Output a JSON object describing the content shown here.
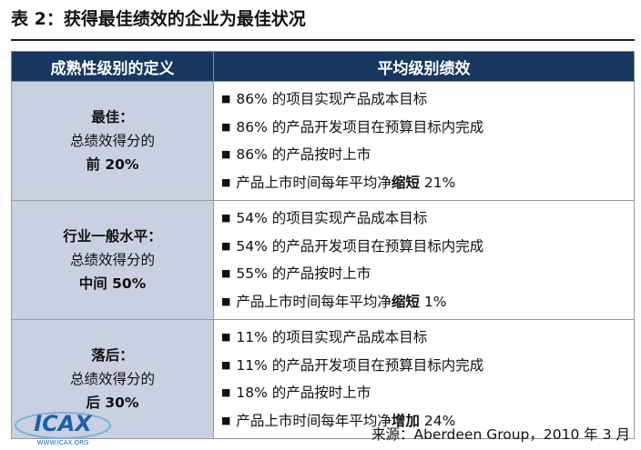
{
  "header": {
    "title": "表 2：获得最佳绩效的企业为最佳状况"
  },
  "table": {
    "columns": [
      "成熟性级别的定义",
      "平均级别绩效"
    ],
    "rows": [
      {
        "level": "最佳：",
        "desc": "总绩效得分的",
        "share": "前 20%",
        "items": [
          "86% 的项目实现产品成本目标",
          "86% 的产品开发项目在预算目标内完成",
          "86% 的产品按时上市",
          {
            "text": "产品上市时间每年平均净",
            "emphasis": "缩短",
            "rest": "21%"
          }
        ]
      },
      {
        "level": "行业一般水平：",
        "desc": "总绩效得分的",
        "share": "中间 50%",
        "items": [
          "54% 的项目实现产品成本目标",
          "54% 的产品开发项目在预算目标内完成",
          "55% 的产品按时上市",
          {
            "text": "产品上市时间每年平均净",
            "emphasis": "缩短",
            "rest": "1%"
          }
        ]
      },
      {
        "level": "落后：",
        "desc": "总绩效得分的",
        "share": "后 30%",
        "items": [
          "11% 的项目实现产品成本目标",
          "11% 的产品开发项目在预算目标内完成",
          "18% 的产品按时上市",
          {
            "text": "产品上市时间每年平均净",
            "emphasis": "增加",
            "rest": "24%"
          }
        ]
      }
    ]
  },
  "footer": {
    "source": "来源：Aberdeen Group，2010 年 3 月",
    "logo": "ICAX",
    "logo_url": "WWW.ICAX.ORG"
  }
}
